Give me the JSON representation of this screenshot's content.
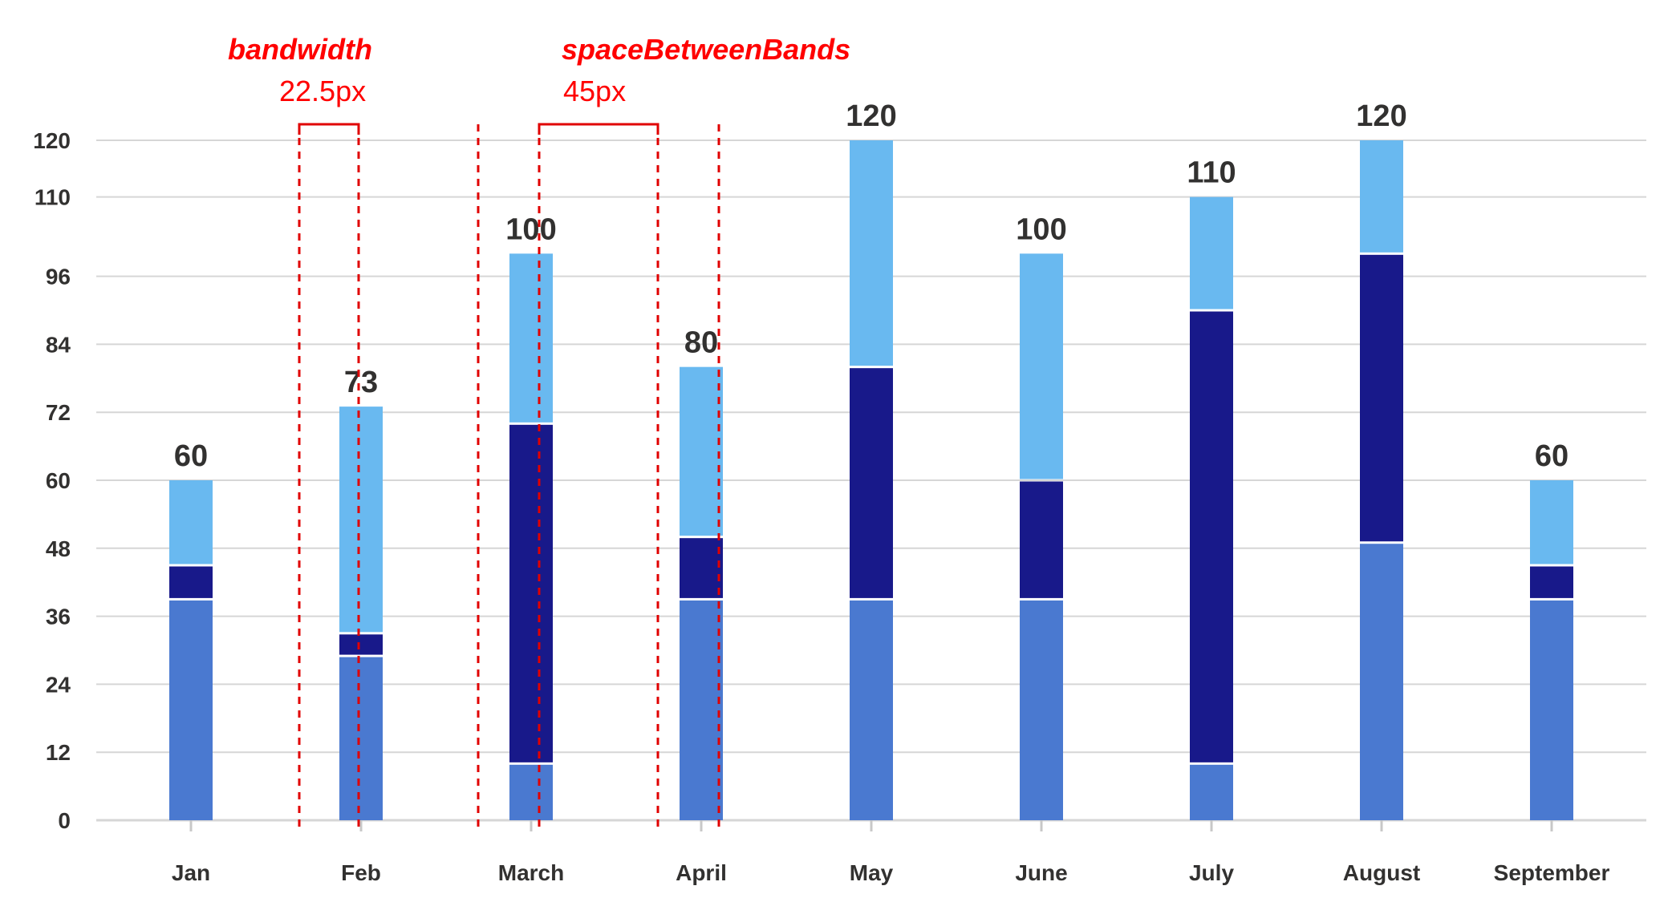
{
  "chart_data": {
    "type": "bar",
    "stacked": true,
    "categories": [
      "Jan",
      "Feb",
      "March",
      "April",
      "May",
      "June",
      "July",
      "August",
      "September"
    ],
    "series": [
      {
        "values": [
          39,
          29,
          10,
          39,
          39,
          39,
          10,
          49,
          39
        ],
        "color": "#4a79d0"
      },
      {
        "values": [
          6,
          4,
          60,
          11,
          41,
          21,
          80,
          51,
          6
        ],
        "color": "#18198a"
      },
      {
        "values": [
          15,
          40,
          30,
          30,
          40,
          40,
          20,
          20,
          15
        ],
        "color": "#69b9f0"
      }
    ],
    "totals": [
      "60",
      "73",
      "100",
      "80",
      "120",
      "100",
      "110",
      "120",
      "60"
    ],
    "yticks": [
      "0",
      "12",
      "24",
      "36",
      "48",
      "60",
      "72",
      "84",
      "96",
      "110",
      "120"
    ],
    "ylim": [
      0,
      120
    ],
    "grid": true,
    "title": "",
    "xlabel": "",
    "ylabel": "",
    "annotations": {
      "bandwidth": {
        "label": "bandwidth",
        "value": "22.5px"
      },
      "space_between_bands": {
        "label": "spaceBetweenBands",
        "value": "45px"
      }
    }
  }
}
